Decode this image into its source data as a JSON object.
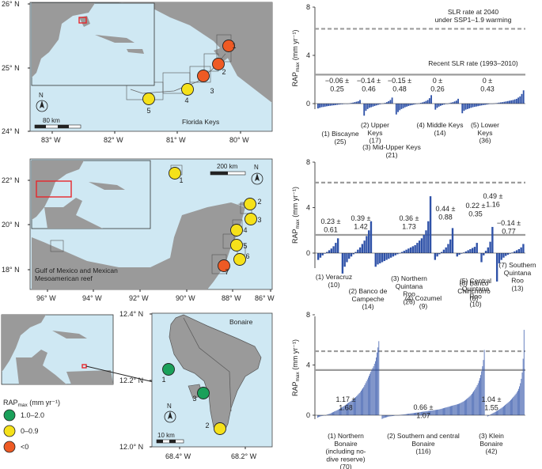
{
  "colors": {
    "sea": "#cfe8f3",
    "land": "#9a9a9a",
    "land_dark": "#7f7f7f",
    "green": "#1aa05a",
    "yellow": "#f5e11a",
    "orange": "#ee5a24",
    "bar": "#2f52a8",
    "solid_line": "#9c9c9c",
    "dashed_line": "#9c9c9c",
    "inset_box": "#e8262b"
  },
  "maps": {
    "florida": {
      "lat_ticks": [
        "26° N",
        "25° N",
        "24° N"
      ],
      "lon_ticks": [
        "83° W",
        "82° W",
        "81° W",
        "80° W"
      ],
      "title": "Florida Keys",
      "scale": "80 km",
      "north": "N",
      "sites": [
        {
          "n": "1",
          "status": "orange"
        },
        {
          "n": "2",
          "status": "orange"
        },
        {
          "n": "3",
          "status": "orange"
        },
        {
          "n": "4",
          "status": "yellow"
        },
        {
          "n": "5",
          "status": "yellow"
        }
      ]
    },
    "mexico": {
      "lat_ticks": [
        "22° N",
        "20° N",
        "18° N"
      ],
      "lon_ticks": [
        "96° W",
        "94° W",
        "92° W",
        "90° W",
        "88° W",
        "86° W"
      ],
      "title": "Gulf of Mexico and Mexican\nMesoamerican reef",
      "scale": "200 km",
      "north": "N",
      "sites": [
        {
          "n": "1",
          "status": "yellow"
        },
        {
          "n": "2",
          "status": "yellow"
        },
        {
          "n": "3",
          "status": "yellow"
        },
        {
          "n": "4",
          "status": "yellow"
        },
        {
          "n": "5",
          "status": "yellow"
        },
        {
          "n": "6",
          "status": "yellow"
        },
        {
          "n": "7",
          "status": "orange"
        }
      ]
    },
    "bonaire": {
      "lat_ticks": [
        "12.4° N",
        "12.2° N",
        "12.0° N"
      ],
      "lon_ticks": [
        "68.4° W",
        "68.2° W"
      ],
      "title": "Bonaire",
      "scale": "10 km",
      "north": "N",
      "sites": [
        {
          "n": "1",
          "status": "green"
        },
        {
          "n": "2",
          "status": "yellow"
        },
        {
          "n": "3",
          "status": "green"
        }
      ]
    }
  },
  "legend": {
    "title": "RAPmax (mm yr⁻¹)",
    "title_main": "RAP",
    "title_sub": "max",
    "title_unit": " (mm yr⁻¹)",
    "items": [
      {
        "label": "1.0–2.0",
        "color": "green"
      },
      {
        "label": "0–0.9",
        "color": "yellow"
      },
      {
        "label": "<0",
        "color": "orange"
      }
    ]
  },
  "chart_data": [
    {
      "type": "bar",
      "ylabel": "RAPmax (mm yr⁻¹)",
      "ylim": [
        -1,
        8
      ],
      "yticks": [
        "0",
        "4",
        "8"
      ],
      "dashed_line": {
        "y": 6.2,
        "label": "SLR rate at 2040\nunder SSP1–1.9 warming"
      },
      "solid_line": {
        "y": 2.4,
        "label": "Recent SLR rate (1993–2010)"
      },
      "groups": [
        {
          "label": "(1) Biscayne\n(25)",
          "count": 25,
          "stat": "−0.06 ±\n0.25",
          "values": [
            -0.4,
            -0.35,
            -0.3,
            -0.28,
            -0.25,
            -0.22,
            -0.2,
            -0.18,
            -0.16,
            -0.14,
            -0.12,
            -0.1,
            -0.08,
            -0.06,
            -0.05,
            -0.03,
            -0.02,
            0,
            0.02,
            0.05,
            0.08,
            0.12,
            0.16,
            0.2,
            0.3
          ]
        },
        {
          "label": "(2) Upper\nKeys\n(17)",
          "count": 17,
          "stat": "−0.14 ±\n0.46",
          "values": [
            -1.0,
            -0.6,
            -0.45,
            -0.35,
            -0.3,
            -0.25,
            -0.2,
            -0.15,
            -0.1,
            -0.06,
            -0.02,
            0.02,
            0.06,
            0.12,
            0.2,
            0.3,
            0.5
          ]
        },
        {
          "label": "(3) Mid-Upper Keys\n(21)",
          "count": 21,
          "stat": "−0.15 ±\n0.48",
          "values": [
            -0.9,
            -0.7,
            -0.55,
            -0.45,
            -0.38,
            -0.3,
            -0.25,
            -0.2,
            -0.15,
            -0.12,
            -0.08,
            -0.05,
            -0.02,
            0.02,
            0.06,
            0.1,
            0.15,
            0.22,
            0.3,
            0.45,
            0.7
          ]
        },
        {
          "label": "(4) Middle Keys\n(14)",
          "count": 14,
          "stat": "0 ±\n0.26",
          "values": [
            -0.5,
            -0.35,
            -0.25,
            -0.18,
            -0.12,
            -0.08,
            -0.04,
            0,
            0.04,
            0.08,
            0.12,
            0.18,
            0.25,
            0.4
          ]
        },
        {
          "label": "(5) Lower\nKeys\n(36)",
          "count": 36,
          "stat": "0 ±\n0.43",
          "values": [
            -0.8,
            -0.6,
            -0.5,
            -0.45,
            -0.4,
            -0.35,
            -0.3,
            -0.27,
            -0.24,
            -0.21,
            -0.18,
            -0.15,
            -0.12,
            -0.1,
            -0.08,
            -0.05,
            -0.03,
            -0.01,
            0.01,
            0.03,
            0.05,
            0.08,
            0.1,
            0.12,
            0.15,
            0.18,
            0.21,
            0.24,
            0.27,
            0.3,
            0.35,
            0.4,
            0.5,
            0.6,
            0.8,
            1.1
          ]
        }
      ]
    },
    {
      "type": "bar",
      "ylabel": "RAPmax (mm yr⁻¹)",
      "ylim": [
        -1.5,
        8
      ],
      "yticks": [
        "0",
        "4",
        "8"
      ],
      "dashed_line": {
        "y": 6.2,
        "label": ""
      },
      "solid_line": {
        "y": 1.6,
        "label": ""
      },
      "groups": [
        {
          "label": "(1) Veracruz\n(10)",
          "count": 10,
          "stat": "0.23 ±\n0.61",
          "values": [
            -0.6,
            -0.4,
            -0.2,
            -0.05,
            0.1,
            0.25,
            0.4,
            0.6,
            0.9,
            1.3
          ]
        },
        {
          "label": "(2) Banco de\nCampeche\n(14)",
          "count": 14,
          "stat": "0.39 ±\n1.42",
          "values": [
            -1.8,
            -1.2,
            -0.8,
            -0.5,
            -0.3,
            -0.1,
            0.1,
            0.3,
            0.5,
            0.8,
            1.1,
            1.5,
            2.0,
            2.8
          ]
        },
        {
          "label": "(3) Northern\nQuintana\nRoo\n(26)",
          "count": 26,
          "stat": "0.36 ±\n1.73",
          "values": [
            -1.2,
            -1.0,
            -0.9,
            -0.8,
            -0.7,
            -0.6,
            -0.5,
            -0.4,
            -0.3,
            -0.2,
            -0.1,
            0,
            0.1,
            0.2,
            0.3,
            0.4,
            0.5,
            0.6,
            0.7,
            0.9,
            1.1,
            1.3,
            1.6,
            2.0,
            2.8,
            5.0
          ]
        },
        {
          "label": "(4) Cozumel\n(9)",
          "count": 9,
          "stat": "0.44 ±\n0.88",
          "values": [
            -0.6,
            -0.3,
            -0.1,
            0.1,
            0.3,
            0.5,
            0.8,
            1.2,
            2.2
          ]
        },
        {
          "label": "(5) Central\nQuintana\nRoo\n(10)",
          "count": 10,
          "stat": "0.22 ±\n0.35",
          "values": [
            -0.3,
            -0.15,
            -0.05,
            0.05,
            0.15,
            0.25,
            0.35,
            0.45,
            0.55,
            0.9
          ]
        },
        {
          "label": "(6) Banco\nChinchorro\n(6)",
          "count": 6,
          "stat": "0.49 ±\n1.16",
          "values": [
            -0.8,
            -0.2,
            0.2,
            0.5,
            1.0,
            2.3
          ]
        },
        {
          "label": "(7) Southern\nQuintana\nRoo\n(13)",
          "count": 13,
          "stat": "−0.14 ±\n0.77",
          "values": [
            -2.5,
            -0.9,
            -0.6,
            -0.4,
            -0.25,
            -0.15,
            -0.05,
            0.05,
            0.15,
            0.25,
            0.35,
            0.5,
            0.8
          ]
        }
      ]
    },
    {
      "type": "bar",
      "ylabel": "RAPmax (mm yr⁻¹)",
      "ylim": [
        -0.5,
        8
      ],
      "yticks": [
        "0",
        "4",
        "8"
      ],
      "dashed_line": {
        "y": 5.1,
        "label": ""
      },
      "solid_line": {
        "y": 3.6,
        "label": ""
      },
      "groups": [
        {
          "label": "(1) Northern\nBonaire\n(including no-\ndive reserve)\n(70)",
          "count": 70,
          "stat": "1.17 ±\n1.68",
          "values": [
            -0.2,
            -0.15,
            -0.12,
            -0.1,
            -0.08,
            -0.06,
            -0.05,
            -0.03,
            -0.02,
            0,
            0.02,
            0.05,
            0.08,
            0.1,
            0.13,
            0.16,
            0.2,
            0.23,
            0.26,
            0.3,
            0.33,
            0.36,
            0.4,
            0.44,
            0.48,
            0.52,
            0.56,
            0.6,
            0.65,
            0.7,
            0.75,
            0.8,
            0.85,
            0.9,
            0.95,
            1.0,
            1.05,
            1.1,
            1.15,
            1.2,
            1.26,
            1.32,
            1.38,
            1.45,
            1.52,
            1.6,
            1.68,
            1.76,
            1.85,
            1.95,
            2.05,
            2.15,
            2.25,
            2.4,
            2.55,
            2.7,
            2.85,
            3.0,
            3.15,
            3.3,
            3.45,
            3.6,
            3.75,
            3.9,
            4.1,
            4.3,
            4.6,
            5.0,
            5.4,
            5.9
          ]
        },
        {
          "label": "(2) Southern and central\nBonaire\n(116)",
          "count": 116,
          "stat": "0.66 ±\n1.07",
          "values": [
            -0.3,
            -0.25,
            -0.22,
            -0.2,
            -0.18,
            -0.16,
            -0.14,
            -0.12,
            -0.1,
            -0.09,
            -0.08,
            -0.07,
            -0.06,
            -0.05,
            -0.04,
            -0.03,
            -0.02,
            -0.01,
            0,
            0.01,
            0.02,
            0.03,
            0.04,
            0.05,
            0.06,
            0.07,
            0.08,
            0.09,
            0.1,
            0.11,
            0.12,
            0.13,
            0.14,
            0.15,
            0.16,
            0.17,
            0.18,
            0.19,
            0.2,
            0.21,
            0.22,
            0.23,
            0.24,
            0.25,
            0.26,
            0.27,
            0.28,
            0.29,
            0.3,
            0.31,
            0.32,
            0.33,
            0.34,
            0.35,
            0.36,
            0.37,
            0.38,
            0.39,
            0.4,
            0.41,
            0.42,
            0.43,
            0.44,
            0.45,
            0.46,
            0.48,
            0.5,
            0.52,
            0.54,
            0.56,
            0.58,
            0.6,
            0.62,
            0.64,
            0.66,
            0.68,
            0.7,
            0.72,
            0.74,
            0.76,
            0.78,
            0.8,
            0.82,
            0.84,
            0.86,
            0.88,
            0.9,
            0.93,
            0.96,
            1.0,
            1.04,
            1.08,
            1.12,
            1.17,
            1.22,
            1.28,
            1.34,
            1.4,
            1.47,
            1.54,
            1.62,
            1.7,
            1.8,
            1.9,
            2.0,
            2.12,
            2.25,
            2.4,
            2.55,
            2.75,
            2.95,
            3.2,
            3.5,
            3.9,
            4.4,
            5.2
          ]
        },
        {
          "label": "(3) Klein\nBonaire\n(42)",
          "count": 42,
          "stat": "1.04 ±\n1.55",
          "values": [
            -0.1,
            -0.05,
            0,
            0.04,
            0.08,
            0.12,
            0.16,
            0.2,
            0.24,
            0.28,
            0.32,
            0.36,
            0.4,
            0.45,
            0.5,
            0.55,
            0.6,
            0.65,
            0.7,
            0.76,
            0.82,
            0.88,
            0.94,
            1.0,
            1.07,
            1.14,
            1.21,
            1.28,
            1.36,
            1.44,
            1.53,
            1.62,
            1.72,
            1.83,
            1.95,
            2.1,
            2.3,
            2.55,
            2.9,
            3.4,
            4.5,
            6.8
          ]
        }
      ]
    }
  ]
}
